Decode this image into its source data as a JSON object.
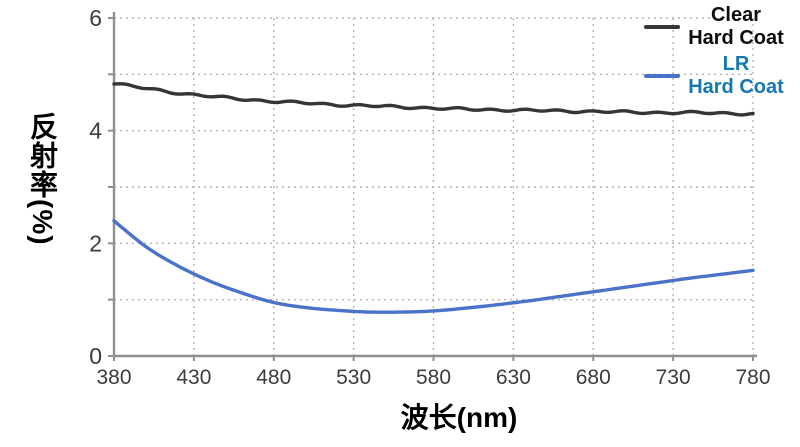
{
  "chart_data": {
    "type": "line",
    "title": "",
    "xlabel": "波长(nm)",
    "ylabel": "反射率(%)",
    "xlim": [
      380,
      780
    ],
    "ylim": [
      0,
      6
    ],
    "x_ticks": [
      380,
      430,
      480,
      530,
      580,
      630,
      680,
      730,
      780
    ],
    "y_ticks": [
      0,
      1,
      2,
      3,
      4,
      5,
      6
    ],
    "y_tick_labels": [
      "0",
      "",
      "2",
      "",
      "4",
      "",
      "6"
    ],
    "grid": "dotted",
    "grid_color": "#b3b3b3",
    "axis_color": "#8f8f8f",
    "tick_label_color": "#3c3c3c",
    "legend_position": "top-right",
    "x": [
      380,
      400,
      420,
      440,
      460,
      480,
      500,
      520,
      540,
      560,
      580,
      600,
      620,
      640,
      660,
      680,
      700,
      720,
      740,
      760,
      780
    ],
    "series": [
      {
        "name": "Clear Hard Coat",
        "label_lines": [
          "Clear",
          "Hard Coat"
        ],
        "color": "#353535",
        "text_color": "#0d0d0d",
        "line_style": "wiggly",
        "values": [
          4.84,
          4.75,
          4.67,
          4.61,
          4.56,
          4.52,
          4.49,
          4.46,
          4.44,
          4.42,
          4.4,
          4.38,
          4.37,
          4.36,
          4.35,
          4.34,
          4.33,
          4.32,
          4.32,
          4.31,
          4.3
        ]
      },
      {
        "name": "LR Hard Coat",
        "label_lines": [
          "LR",
          "Hard Coat"
        ],
        "color": "#4a72c8",
        "text_color": "#1578b0",
        "line_style": "smooth",
        "values": [
          2.4,
          1.94,
          1.6,
          1.33,
          1.12,
          0.95,
          0.86,
          0.81,
          0.78,
          0.78,
          0.8,
          0.85,
          0.91,
          0.98,
          1.06,
          1.14,
          1.22,
          1.3,
          1.38,
          1.45,
          1.52
        ]
      }
    ]
  }
}
